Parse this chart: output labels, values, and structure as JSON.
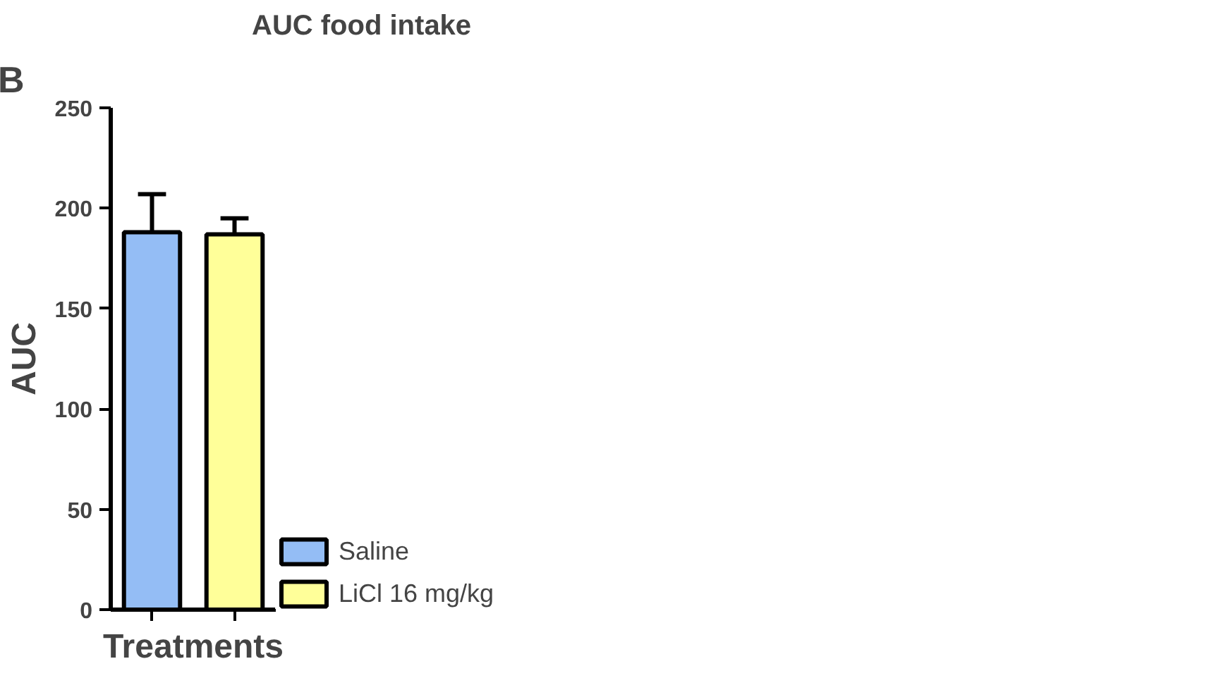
{
  "chart_data": {
    "type": "bar",
    "title": "AUC food intake",
    "xlabel": "Treatments",
    "ylabel": "AUC",
    "categories": [
      null,
      null
    ],
    "series": [
      {
        "name": "Saline",
        "color": "#94bdf5",
        "values": [
          188,
          null
        ],
        "errors": [
          19,
          null
        ]
      },
      {
        "name": "LiCl 16 mg/kg",
        "color": "#ffff99",
        "values": [
          null,
          187
        ],
        "errors": [
          null,
          8
        ]
      }
    ],
    "ylim": [
      0,
      250
    ],
    "yticks": [
      0,
      50,
      100,
      150,
      200,
      250
    ],
    "grid": false,
    "legend": "right",
    "annotations": [
      "B"
    ]
  }
}
